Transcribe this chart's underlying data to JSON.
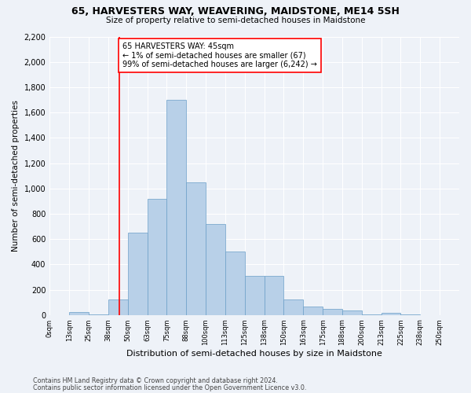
{
  "title1": "65, HARVESTERS WAY, WEAVERING, MAIDSTONE, ME14 5SH",
  "title2": "Size of property relative to semi-detached houses in Maidstone",
  "xlabel": "Distribution of semi-detached houses by size in Maidstone",
  "ylabel": "Number of semi-detached properties",
  "footnote1": "Contains HM Land Registry data © Crown copyright and database right 2024.",
  "footnote2": "Contains public sector information licensed under the Open Government Licence v3.0.",
  "annotation_title": "65 HARVESTERS WAY: 45sqm",
  "annotation_line1": "← 1% of semi-detached houses are smaller (67)",
  "annotation_line2": "99% of semi-detached houses are larger (6,242) →",
  "bar_color": "#b8d0e8",
  "bar_edge_color": "#6a9fc8",
  "redline_x": 2,
  "ylim": [
    0,
    2200
  ],
  "yticks": [
    0,
    200,
    400,
    600,
    800,
    1000,
    1200,
    1400,
    1600,
    1800,
    2000,
    2200
  ],
  "counts": [
    0,
    20,
    2,
    120,
    650,
    920,
    1700,
    1050,
    720,
    500,
    310,
    310,
    120,
    65,
    45,
    35,
    5,
    15,
    2,
    1,
    0
  ],
  "tick_labels": [
    "0sqm",
    "13sqm",
    "25sqm",
    "38sqm",
    "50sqm",
    "63sqm",
    "75sqm",
    "88sqm",
    "100sqm",
    "113sqm",
    "125sqm",
    "138sqm",
    "150sqm",
    "163sqm",
    "175sqm",
    "188sqm",
    "200sqm",
    "213sqm",
    "225sqm",
    "238sqm",
    "250sqm"
  ],
  "background_color": "#eef2f8",
  "grid_color": "#ffffff",
  "n_bins": 21
}
